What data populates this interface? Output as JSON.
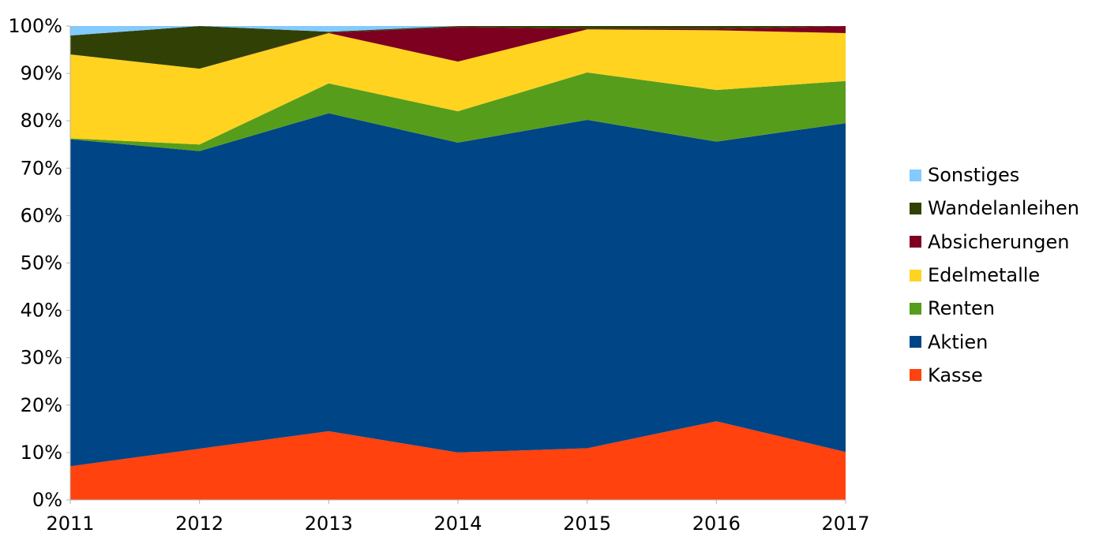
{
  "chart_data": {
    "type": "area",
    "stacked": true,
    "percent": true,
    "title": "",
    "xlabel": "",
    "ylabel": "",
    "categories": [
      "2011",
      "2012",
      "2013",
      "2014",
      "2015",
      "2016",
      "2017"
    ],
    "ylim": [
      0,
      100
    ],
    "yticks": [
      "0%",
      "10%",
      "20%",
      "30%",
      "40%",
      "50%",
      "60%",
      "70%",
      "80%",
      "90%",
      "100%"
    ],
    "grid": false,
    "legend_position": "right",
    "series": [
      {
        "name": "Kasse",
        "color": "#ff420e",
        "values": [
          7.1,
          10.8,
          14.5,
          10.0,
          10.9,
          16.6,
          10.1
        ]
      },
      {
        "name": "Aktien",
        "color": "#004586",
        "values": [
          69.0,
          62.8,
          67.1,
          65.4,
          69.3,
          59.0,
          69.4
        ]
      },
      {
        "name": "Renten",
        "color": "#579d1c",
        "values": [
          0.2,
          1.4,
          6.3,
          6.6,
          10.0,
          10.9,
          8.9
        ]
      },
      {
        "name": "Edelmetalle",
        "color": "#ffd320",
        "values": [
          17.7,
          16.0,
          10.6,
          10.5,
          9.1,
          12.6,
          10.1
        ]
      },
      {
        "name": "Absicherungen",
        "color": "#7e0021",
        "values": [
          0.0,
          0.0,
          0.1,
          7.3,
          0.1,
          0.3,
          1.5
        ]
      },
      {
        "name": "Wandelanleihen",
        "color": "#314004",
        "values": [
          4.0,
          9.0,
          0.2,
          0.2,
          0.6,
          0.6,
          0.0
        ]
      },
      {
        "name": "Sonstiges",
        "color": "#83caff",
        "values": [
          2.0,
          0.0,
          1.2,
          0.0,
          0.0,
          0.0,
          0.0
        ]
      }
    ]
  }
}
